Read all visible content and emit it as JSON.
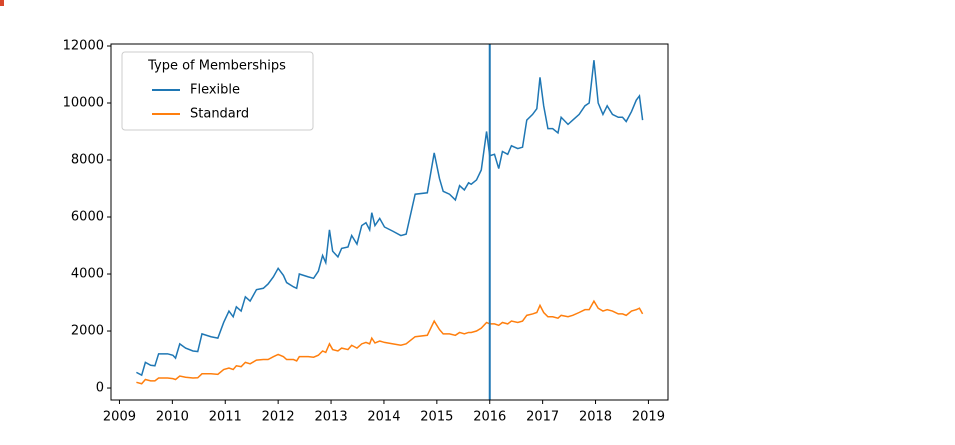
{
  "chart_data": {
    "type": "line",
    "legend_title": "Type of Memberships",
    "legend": "upper left",
    "x": [
      2009.32,
      2009.42,
      2009.49,
      2009.59,
      2009.67,
      2009.74,
      2009.91,
      2010.01,
      2010.06,
      2010.14,
      2010.25,
      2010.39,
      2010.48,
      2010.56,
      2010.73,
      2010.86,
      2010.97,
      2011.07,
      2011.15,
      2011.21,
      2011.3,
      2011.38,
      2011.47,
      2011.59,
      2011.72,
      2011.81,
      2011.91,
      2012.0,
      2012.1,
      2012.16,
      2012.29,
      2012.35,
      2012.4,
      2012.57,
      2012.67,
      2012.76,
      2012.84,
      2012.9,
      2012.97,
      2013.03,
      2013.13,
      2013.2,
      2013.32,
      2013.39,
      2013.49,
      2013.58,
      2013.66,
      2013.73,
      2013.77,
      2013.83,
      2013.92,
      2014.01,
      2014.17,
      2014.32,
      2014.42,
      2014.59,
      2014.82,
      2014.95,
      2015.05,
      2015.12,
      2015.24,
      2015.35,
      2015.43,
      2015.52,
      2015.6,
      2015.65,
      2015.75,
      2015.84,
      2015.94,
      2016.0,
      2016.09,
      2016.17,
      2016.24,
      2016.34,
      2016.41,
      2016.53,
      2016.62,
      2016.7,
      2016.81,
      2016.89,
      2016.95,
      2017.02,
      2017.1,
      2017.19,
      2017.29,
      2017.35,
      2017.48,
      2017.57,
      2017.69,
      2017.8,
      2017.88,
      2017.97,
      2018.05,
      2018.14,
      2018.22,
      2018.32,
      2018.43,
      2018.51,
      2018.58,
      2018.68,
      2018.77,
      2018.83,
      2018.89
    ],
    "series": [
      {
        "name": "Flexible",
        "color": "#1f77b4",
        "values": [
          550,
          450,
          900,
          800,
          780,
          1200,
          1200,
          1150,
          1050,
          1550,
          1400,
          1300,
          1280,
          1900,
          1800,
          1750,
          2300,
          2700,
          2500,
          2850,
          2700,
          3200,
          3050,
          3450,
          3500,
          3650,
          3900,
          4200,
          3950,
          3700,
          3550,
          3500,
          4000,
          3900,
          3850,
          4100,
          4650,
          4400,
          5550,
          4800,
          4600,
          4900,
          4950,
          5350,
          5050,
          5700,
          5800,
          5550,
          6150,
          5700,
          5950,
          5650,
          5500,
          5350,
          5400,
          6800,
          6850,
          8250,
          7350,
          6900,
          6800,
          6600,
          7100,
          6950,
          7200,
          7150,
          7300,
          7650,
          9000,
          8150,
          8200,
          7700,
          8300,
          8200,
          8500,
          8400,
          8450,
          9400,
          9600,
          9800,
          10900,
          9900,
          9100,
          9100,
          8950,
          9500,
          9250,
          9400,
          9600,
          9900,
          10000,
          11500,
          10000,
          9600,
          9900,
          9600,
          9500,
          9500,
          9350,
          9700,
          10100,
          10250,
          9400
        ]
      },
      {
        "name": "Standard",
        "color": "#ff7f0e",
        "values": [
          200,
          150,
          300,
          250,
          250,
          350,
          350,
          330,
          300,
          420,
          380,
          350,
          360,
          500,
          500,
          480,
          650,
          700,
          650,
          780,
          750,
          900,
          850,
          980,
          1000,
          1000,
          1100,
          1180,
          1100,
          1000,
          1000,
          950,
          1100,
          1100,
          1080,
          1150,
          1300,
          1250,
          1550,
          1350,
          1300,
          1400,
          1350,
          1500,
          1400,
          1550,
          1600,
          1550,
          1750,
          1580,
          1650,
          1600,
          1550,
          1500,
          1550,
          1800,
          1850,
          2350,
          2050,
          1900,
          1900,
          1850,
          1950,
          1900,
          1950,
          1950,
          2000,
          2100,
          2300,
          2250,
          2250,
          2200,
          2300,
          2250,
          2350,
          2300,
          2350,
          2550,
          2600,
          2650,
          2900,
          2650,
          2500,
          2500,
          2450,
          2550,
          2500,
          2550,
          2650,
          2750,
          2750,
          3050,
          2800,
          2700,
          2750,
          2700,
          2600,
          2600,
          2550,
          2700,
          2750,
          2800,
          2600
        ]
      }
    ],
    "vline": {
      "x": 2016,
      "color": "#1f77b4"
    },
    "xlim": [
      2008.84,
      2019.37
    ],
    "xticks": [
      2009,
      2010,
      2011,
      2012,
      2013,
      2014,
      2015,
      2016,
      2017,
      2018,
      2019
    ],
    "ylim": [
      -420,
      12070
    ],
    "yticks": [
      0,
      2000,
      4000,
      6000,
      8000,
      10000,
      12000
    ],
    "grid": false
  }
}
